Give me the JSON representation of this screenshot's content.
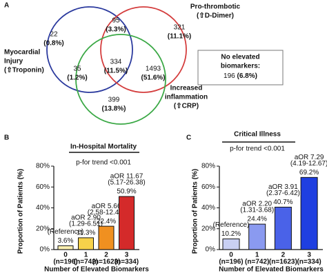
{
  "chart_data": [
    {
      "type": "venn",
      "panel": "A",
      "sets": [
        {
          "label_lines": [
            "Myocardial",
            "Injury",
            "(⇧Troponin)"
          ],
          "color": "#2b3a9e"
        },
        {
          "label_lines": [
            "Pro-thrombotic",
            "(⇧D-Dimer)"
          ],
          "color": "#d43d3d"
        },
        {
          "label_lines": [
            "Increased",
            "inflammation",
            "(⇧CRP)"
          ],
          "color": "#3aa845"
        }
      ],
      "regions": [
        {
          "count": 22,
          "percent": "(0.8%)"
        },
        {
          "count": 95,
          "percent": "(3.3%)"
        },
        {
          "count": 321,
          "percent": "(11.1%)"
        },
        {
          "count": 334,
          "percent": "(11.5%)"
        },
        {
          "count": 35,
          "percent": "(1.2%)"
        },
        {
          "count": 1493,
          "percent": "(51.6%)"
        },
        {
          "count": 399,
          "percent": "(13.8%)"
        }
      ],
      "box": {
        "lines": [
          "No elevated",
          "biomarkers:"
        ],
        "count": 196,
        "percent": "(6.8%)"
      }
    },
    {
      "type": "bar",
      "panel": "B",
      "title": "In-Hospital Mortality",
      "subtitle": "p-for trend <0.001",
      "ylabel": "Proportion of Patients (%)",
      "xlabel": "Number of Elevated Biomarkers",
      "categories": [
        "0",
        "1",
        "2",
        "3"
      ],
      "n_labels": [
        "(n=196)",
        "(n=742)",
        "(n=1623)",
        "(n=334)"
      ],
      "values": [
        3.6,
        11.3,
        22.4,
        50.9
      ],
      "value_labels": [
        "3.6%",
        "11.3%",
        "22.4%",
        "50.9%"
      ],
      "annotations": [
        [
          "(Reference)"
        ],
        [
          "aOR 2.90",
          "(1.29-6.51)"
        ],
        [
          "aOR 5.66",
          "(2.58-12.40)"
        ],
        [
          "aOR 11.67",
          "(5.17-26.38)"
        ]
      ],
      "colors": [
        "#fbf0b0",
        "#f7d24a",
        "#f09020",
        "#d42a2a"
      ],
      "ylim": [
        0,
        80
      ],
      "yticks": [
        {
          "value": 0,
          "label": "0%"
        },
        {
          "value": 20,
          "label": "20%"
        },
        {
          "value": 40,
          "label": "40%"
        },
        {
          "value": 60,
          "label": "60%"
        },
        {
          "value": 80,
          "label": "80%"
        }
      ]
    },
    {
      "type": "bar",
      "panel": "C",
      "title": "Critical Illness",
      "subtitle": "p-for trend <0.001",
      "ylabel": "Proportion of Patients (%)",
      "xlabel": "Number of Elevated Biomarkers",
      "categories": [
        "0",
        "1",
        "2",
        "3"
      ],
      "n_labels": [
        "(n=196)",
        "(n=742)",
        "(n=1623)",
        "(n=334)"
      ],
      "values": [
        10.2,
        24.4,
        40.7,
        69.2
      ],
      "value_labels": [
        "10.2%",
        "24.4%",
        "40.7%",
        "69.2%"
      ],
      "annotations": [
        [
          "(Reference)"
        ],
        [
          "aOR 2.20",
          "(1.31-3.68)"
        ],
        [
          "aOR 3.91",
          "(2.37-6.42)"
        ],
        [
          "aOR 7.29",
          "(4.19-12.67)"
        ]
      ],
      "colors": [
        "#c9d0f3",
        "#8a9af0",
        "#4a62e8",
        "#1f3fe0"
      ],
      "ylim": [
        0,
        80
      ],
      "yticks": [
        {
          "value": 0,
          "label": "0%"
        },
        {
          "value": 20,
          "label": "20%"
        },
        {
          "value": 40,
          "label": "40%"
        },
        {
          "value": 60,
          "label": "60%"
        },
        {
          "value": 80,
          "label": "80%"
        }
      ]
    }
  ]
}
